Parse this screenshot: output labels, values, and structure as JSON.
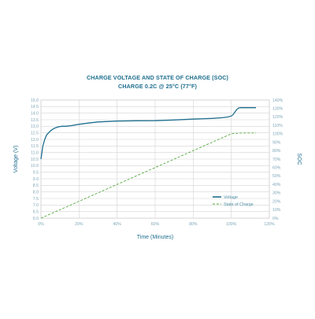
{
  "chart_data": {
    "type": "line",
    "title": "CHARGE VOLTAGE AND STATE OF CHARGE (SOC)",
    "subtitle": "CHARGE 0.2C @ 25°C (77°F)",
    "xlabel": "Time (Minutes)",
    "ylabel_left": "Voltage (V)",
    "ylabel_right": "SOC",
    "x_ticks": [
      "0%",
      "20%",
      "40%",
      "60%",
      "80%",
      "100%",
      "120%"
    ],
    "y_left_ticks": [
      "6.0",
      "6.5",
      "7.0",
      "7.5",
      "8.0",
      "8.5",
      "9.0",
      "9.5",
      "10.0",
      "10.5",
      "11.0",
      "11.5",
      "12.0",
      "12.5",
      "13.0",
      "13.5",
      "14.0",
      "14.5",
      "15.0"
    ],
    "y_right_ticks": [
      "0%",
      "10%",
      "20%",
      "30%",
      "40%",
      "50%",
      "60%",
      "70%",
      "80%",
      "90%",
      "100%",
      "110%",
      "120%",
      "130%",
      "140%"
    ],
    "xlim": [
      0,
      120
    ],
    "ylim_left": [
      6.0,
      15.0
    ],
    "ylim_right": [
      0,
      140
    ],
    "grid": true,
    "legend_position": "lower-right",
    "colors": {
      "voltage": "#1f6f8f",
      "soc": "#52a83a",
      "grid": "#d4d4d4",
      "title": "#1f6f8f",
      "ticks": "#7fa7b8"
    },
    "series": [
      {
        "name": "Voltage",
        "axis": "left",
        "x": [
          0,
          0.5,
          1,
          2,
          3,
          5,
          7,
          9,
          11,
          13,
          15,
          20,
          25,
          30,
          40,
          50,
          60,
          70,
          80,
          90,
          95,
          98,
          100,
          101,
          102,
          103,
          104,
          105,
          106,
          110,
          113
        ],
        "y": [
          10.5,
          11.0,
          11.5,
          12.0,
          12.35,
          12.65,
          12.85,
          12.95,
          13.0,
          13.0,
          13.03,
          13.15,
          13.25,
          13.33,
          13.4,
          13.42,
          13.43,
          13.48,
          13.55,
          13.6,
          13.65,
          13.7,
          13.78,
          13.9,
          14.1,
          14.3,
          14.4,
          14.42,
          14.42,
          14.42,
          14.42
        ]
      },
      {
        "name": "State of Charge",
        "axis": "right",
        "x": [
          0,
          100,
          106,
          113
        ],
        "y": [
          0,
          100,
          101,
          101
        ]
      }
    ]
  }
}
